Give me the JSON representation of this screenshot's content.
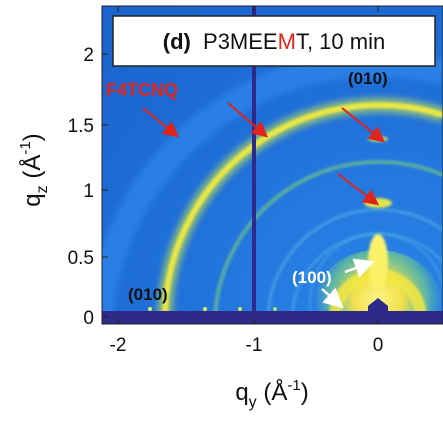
{
  "panel": {
    "label": "(d)",
    "title_prefix": "P3MEE",
    "title_highlight": "M",
    "title_suffix": "T, 10 min",
    "highlight_color": "#e0241b"
  },
  "axes": {
    "xlabel_main": "q",
    "xlabel_sub": "y",
    "xlabel_unit_open": " (Å",
    "xlabel_unit_exp": "-1",
    "xlabel_unit_close": ")",
    "ylabel_main": "q",
    "ylabel_sub": "z",
    "ylabel_unit_open": " (Å",
    "ylabel_unit_exp": "-1",
    "ylabel_unit_close": ")",
    "xticks": [
      "-2",
      "-1",
      "0"
    ],
    "yticks": [
      "0",
      "0.5",
      "1",
      "1.5",
      "2"
    ]
  },
  "annotations": {
    "dopant": "F4TCNQ",
    "peak_010_top": "(010)",
    "peak_010_bottom": "(010)",
    "peak_100": "(100)"
  },
  "colors": {
    "background_blue": "#1e6ed8",
    "ring_yellow": "#f5f23a",
    "cutline_navy": "#2d2a8a",
    "arrow_red": "#e0241b"
  }
}
